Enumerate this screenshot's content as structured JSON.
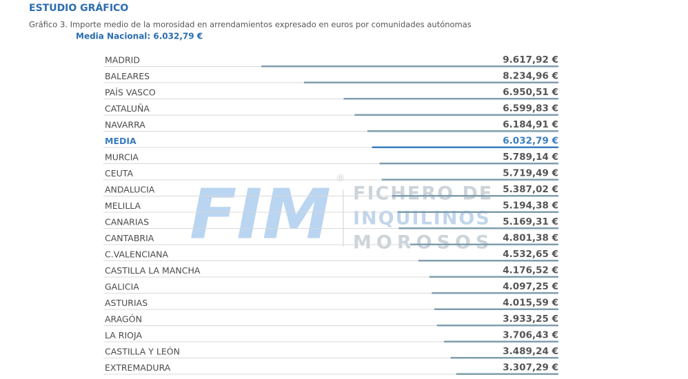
{
  "chart_data": {
    "type": "bar",
    "title": "ESTUDIO GRÁFICO",
    "subtitle": "Gráfico 3. Importe medio de la morosidad en arrendamientos expresado en euros por comunidades autónomas",
    "annotation": "Media Nacional: 6.032,79 €",
    "categories": [
      "MADRID",
      "BALEARES",
      "PAÍS VASCO",
      "CATALUÑA",
      "NAVARRA",
      "MEDIA",
      "MURCIA",
      "CEUTA",
      "ANDALUCIA",
      "MELILLA",
      "CANARIAS",
      "CANTABRIA",
      "C.VALENCIANA",
      "CASTILLA LA MANCHA",
      "GALICIA",
      "ASTURIAS",
      "ARAGÓN",
      "LA RIOJA",
      "CASTILLA Y LEÓN",
      "EXTREMADURA"
    ],
    "values": [
      9617.92,
      8234.96,
      6950.51,
      6599.83,
      6184.91,
      6032.79,
      5789.14,
      5719.49,
      5387.02,
      5194.38,
      5169.31,
      4801.38,
      4532.65,
      4176.52,
      4097.25,
      4015.59,
      3933.25,
      3706.43,
      3489.24,
      3307.29
    ],
    "value_labels": [
      "9.617,92 €",
      "8.234,96 €",
      "6.950,51 €",
      "6.599,83 €",
      "6.184,91 €",
      "6.032,79 €",
      "5.789,14 €",
      "5.719,49 €",
      "5.387,02 €",
      "5.194,38 €",
      "5.169,31 €",
      "4.801,38 €",
      "4.532,65 €",
      "4.176,52 €",
      "4.097,25 €",
      "4.015,59 €",
      "3.933,25 €",
      "3.706,43 €",
      "3.489,24 €",
      "3.307,29 €"
    ],
    "colors": [
      "#7f9dad",
      "#7f9dad",
      "#7f9dad",
      "#7f9dad",
      "#7f9dad",
      "#3a7cc0",
      "#7f9dad",
      "#7f9dad",
      "#7f9dad",
      "#7f9dad",
      "#7f9dad",
      "#7f9dad",
      "#7f9dad",
      "#7f9dad",
      "#7f9dad",
      "#7f9dad",
      "#7f9dad",
      "#7f9dad",
      "#7f9dad",
      "#7f9dad"
    ]
  },
  "watermark": {
    "logo": "FIM",
    "mark": "®",
    "lines": [
      "FICHERO DE",
      "INQUILINOS",
      "MOROSOS"
    ]
  }
}
